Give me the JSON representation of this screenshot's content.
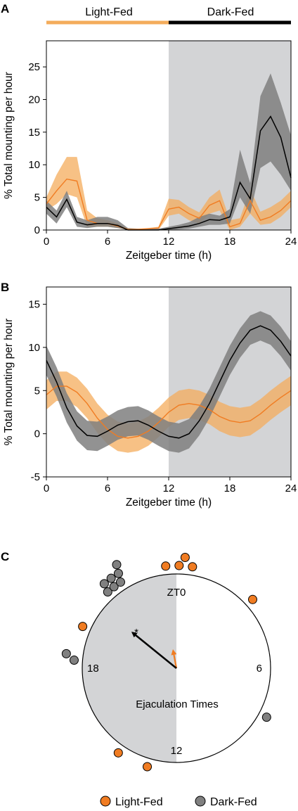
{
  "colors": {
    "light": "#f07c22",
    "light_band": "#f4ac5c",
    "dark": "#000000",
    "dark_band": "#7f7f7f",
    "dark_phase_shade": "#d3d4d6"
  },
  "header": {
    "light_label": "Light-Fed",
    "dark_label": "Dark-Fed"
  },
  "panels": {
    "a": "A",
    "b": "B",
    "c": "C"
  },
  "chart_data": [
    {
      "type": "line",
      "panel": "A",
      "xlabel": "Zeitgeber time (h)",
      "ylabel": "% Total mounting per hour",
      "xlim": [
        0,
        24
      ],
      "ylim": [
        0,
        29
      ],
      "xticks": [
        0,
        6,
        12,
        18,
        24
      ],
      "yticks": [
        0,
        5,
        10,
        15,
        20,
        25
      ],
      "dark_phase": [
        12,
        24
      ],
      "x": [
        0,
        1,
        2,
        3,
        4,
        5,
        6,
        7,
        8,
        9,
        10,
        11,
        12,
        13,
        14,
        15,
        16,
        17,
        18,
        19,
        20,
        21,
        22,
        23,
        24
      ],
      "series": [
        {
          "name": "Light-Fed",
          "values": [
            4,
            6,
            7.8,
            7.5,
            1.5,
            1,
            1,
            0.6,
            0.1,
            0.1,
            0.2,
            0.3,
            3.2,
            3.5,
            2.5,
            1.8,
            3.8,
            4.5,
            0.5,
            1,
            4.5,
            1.5,
            2,
            3,
            4.5
          ],
          "lower": [
            3,
            4,
            5.5,
            5,
            0.5,
            0.5,
            0.5,
            0.3,
            0,
            0,
            0,
            0,
            2.2,
            2.5,
            1.5,
            1,
            2.5,
            3,
            0,
            0.5,
            2.5,
            0.8,
            1,
            2,
            3.5
          ],
          "upper": [
            5,
            8.5,
            11.2,
            11.2,
            3,
            1.8,
            1.5,
            1,
            0.2,
            0.2,
            0.3,
            0.5,
            4.8,
            4.6,
            3.5,
            2.7,
            5,
            6.2,
            1.5,
            1.8,
            6.3,
            2.8,
            3.5,
            4.5,
            6
          ]
        },
        {
          "name": "Dark-Fed",
          "values": [
            3.5,
            2,
            4.7,
            1.2,
            0.8,
            1,
            1,
            0.7,
            0,
            0,
            0,
            0,
            0.2,
            0.4,
            0.6,
            1,
            1.6,
            1.5,
            2,
            7.3,
            4.8,
            15.2,
            17.4,
            14.2,
            8
          ],
          "lower": [
            2.5,
            1,
            3.5,
            0.5,
            0.3,
            0.5,
            0.5,
            0.3,
            0,
            0,
            0,
            0,
            0,
            0.1,
            0.2,
            0.5,
            0.8,
            0.8,
            1,
            5,
            2.5,
            9.5,
            10.5,
            8.5,
            6
          ],
          "upper": [
            4.5,
            3,
            6,
            2,
            1.5,
            2,
            2,
            1.5,
            0.3,
            0.2,
            0.2,
            0.2,
            0.5,
            0.8,
            1.2,
            2,
            2.5,
            2.2,
            3.2,
            12.3,
            7.2,
            20.5,
            24,
            19.5,
            14.5
          ]
        }
      ]
    },
    {
      "type": "line",
      "panel": "B",
      "xlabel": "Zeitgeber time (h)",
      "ylabel": "% Total mounting per hour",
      "xlim": [
        0,
        24
      ],
      "ylim": [
        -5,
        17
      ],
      "xticks": [
        0,
        6,
        12,
        18,
        24
      ],
      "yticks": [
        -5,
        0,
        5,
        10,
        15
      ],
      "dark_phase": [
        12,
        24
      ],
      "x": [
        0,
        1,
        2,
        3,
        4,
        5,
        6,
        7,
        8,
        9,
        10,
        11,
        12,
        13,
        14,
        15,
        16,
        17,
        18,
        19,
        20,
        21,
        22,
        23,
        24
      ],
      "series": [
        {
          "name": "Light-Fed",
          "values": [
            4.5,
            5.5,
            5.5,
            4.8,
            3.5,
            1.8,
            0.5,
            -0.3,
            -0.5,
            -0.3,
            0.3,
            1.3,
            2.5,
            3.3,
            3.5,
            3.3,
            2.8,
            2,
            1.5,
            1.3,
            1.5,
            2.3,
            3.3,
            4.2,
            5
          ],
          "band": 1.7
        },
        {
          "name": "Dark-Fed",
          "values": [
            8.5,
            6,
            3,
            0.9,
            -0.2,
            -0.3,
            0.3,
            1,
            1.4,
            1.5,
            1,
            0.3,
            -0.3,
            -0.5,
            0,
            1.5,
            3.5,
            6,
            8.5,
            10.5,
            12,
            12.5,
            12,
            10.7,
            9
          ],
          "band": 1.7
        }
      ]
    },
    {
      "type": "scatter",
      "panel": "C",
      "subtype": "polar-clock",
      "center_label": "Ejaculation Times",
      "hour_labels": {
        "top": "ZT0",
        "right": "6",
        "bottom": "12",
        "left": "18"
      },
      "dark_half_hours": [
        12,
        24
      ],
      "significance_mark": "*",
      "light_fed_hours": [
        23.6,
        0.1,
        0.3,
        0.6,
        3.2,
        13.1,
        14.3,
        19.6
      ],
      "dark_fed_hours": [
        7.9,
        18.3,
        18.5,
        21.3,
        21.5,
        21.8,
        21.2,
        21.6,
        22.0,
        21.9
      ],
      "mean_vectors": [
        {
          "series": "Light-Fed",
          "angle_hours": 23.3,
          "length": 0.19
        },
        {
          "series": "Dark-Fed",
          "angle_hours": 20.6,
          "length": 0.6
        }
      ],
      "legend": [
        {
          "name": "Light-Fed",
          "color": "#f07c22"
        },
        {
          "name": "Dark-Fed",
          "color": "#808080"
        }
      ]
    }
  ]
}
